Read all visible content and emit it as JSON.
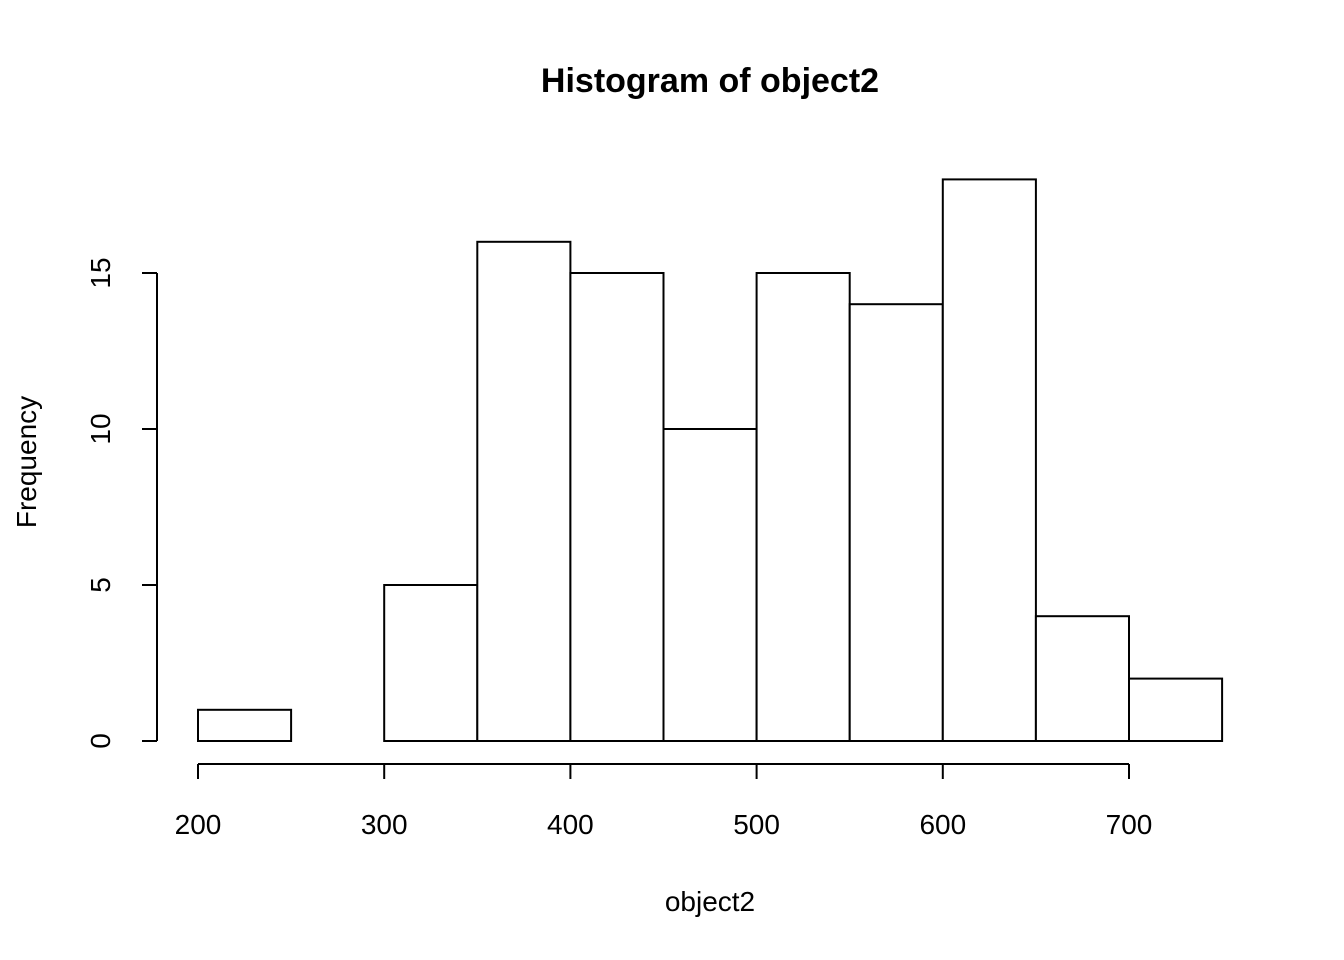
{
  "chart_data": {
    "type": "bar",
    "title": "Histogram of object2",
    "xlabel": "object2",
    "ylabel": "Frequency",
    "bin_edges": [
      200,
      250,
      300,
      350,
      400,
      450,
      500,
      550,
      600,
      650,
      700,
      750
    ],
    "values": [
      1,
      0,
      5,
      16,
      15,
      10,
      15,
      14,
      18,
      4,
      2
    ],
    "x_ticks": [
      200,
      300,
      400,
      500,
      600,
      700
    ],
    "x_tick_labels": [
      "200",
      "300",
      "400",
      "500",
      "600",
      "700"
    ],
    "y_ticks": [
      0,
      5,
      10,
      15
    ],
    "y_tick_labels": [
      "0",
      "5",
      "10",
      "15"
    ],
    "xlim": [
      200,
      750
    ],
    "ylim": [
      0,
      18
    ],
    "grid": false,
    "colors": {
      "bar_fill": "#ffffff",
      "bar_stroke": "#000000",
      "background": "#ffffff"
    }
  }
}
